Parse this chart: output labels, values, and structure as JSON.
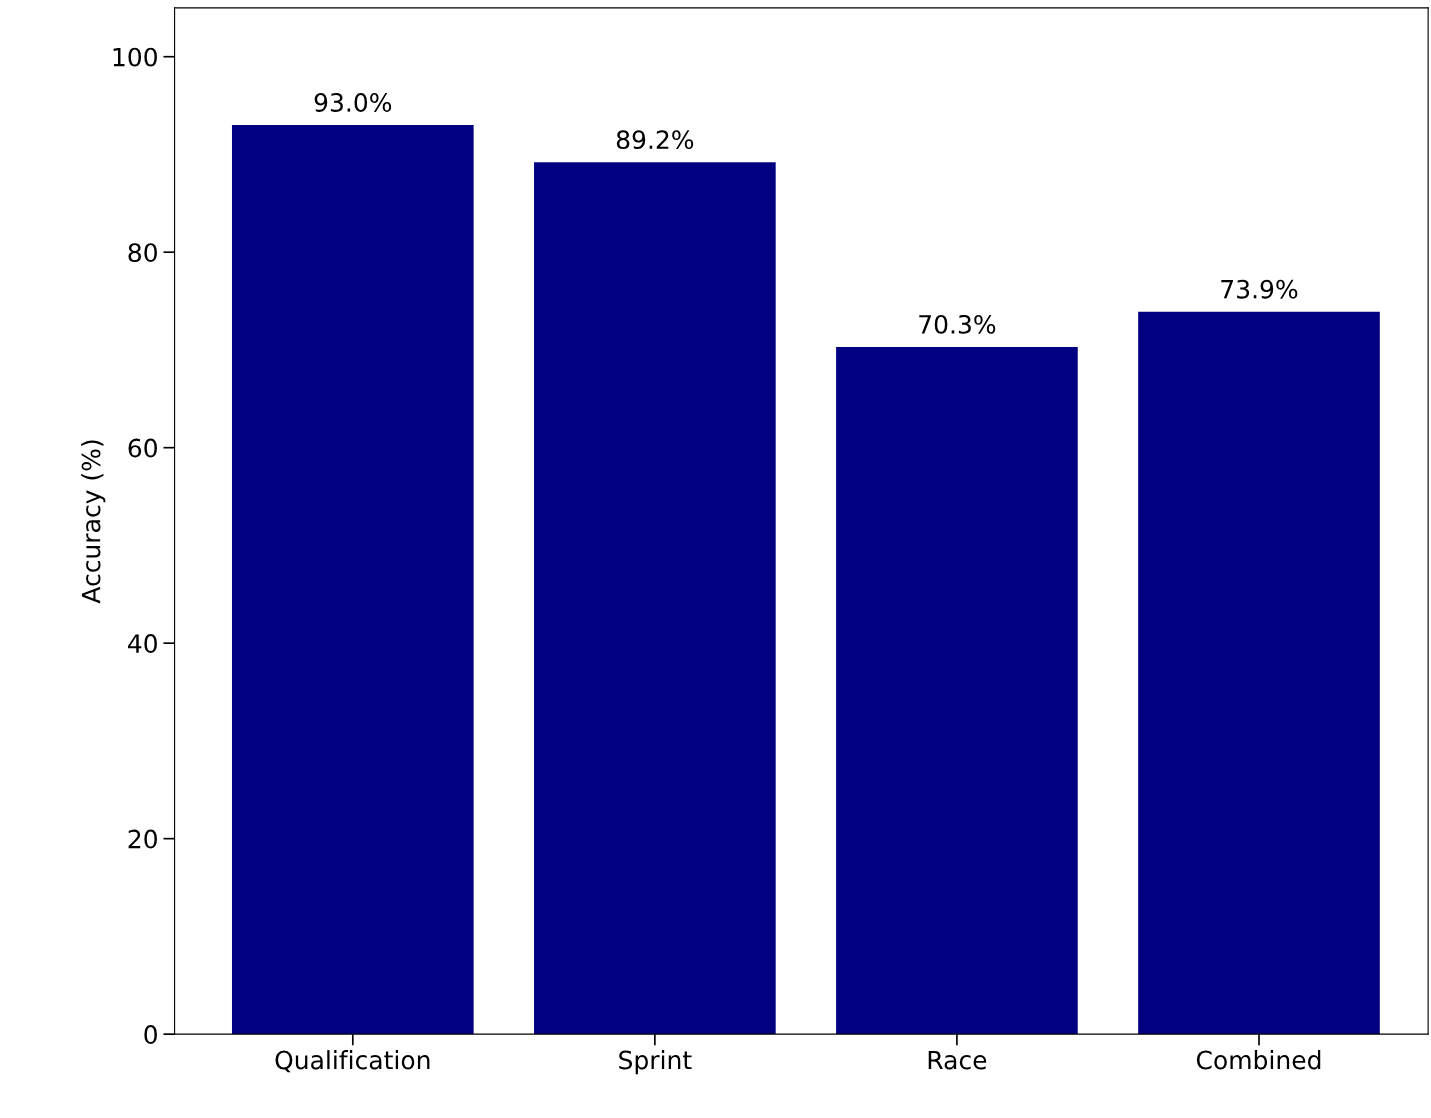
{
  "chart_data": {
    "type": "bar",
    "ylabel": "Accuracy (%)",
    "categories": [
      "Qualification",
      "Sprint",
      "Race",
      "Combined"
    ],
    "values": [
      93.0,
      89.2,
      70.3,
      73.9
    ],
    "value_labels": [
      "93.0%",
      "89.2%",
      "70.3%",
      "73.9%"
    ],
    "color": "#000080",
    "ylim": [
      0,
      105
    ],
    "yticks": [
      0,
      20,
      40,
      60,
      80,
      100
    ],
    "grid": false
  }
}
